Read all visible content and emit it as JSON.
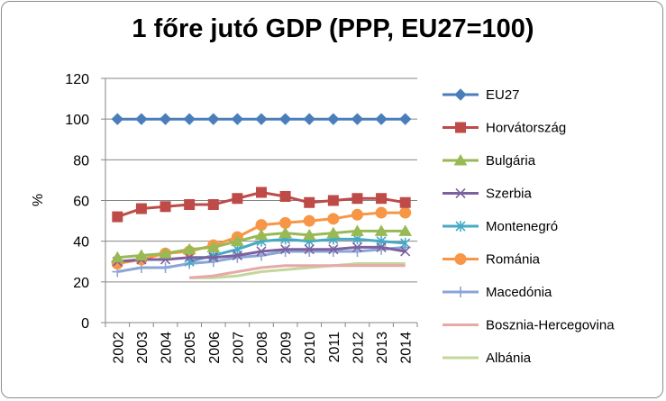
{
  "chart_data": {
    "type": "line",
    "title": "1 főre jutó GDP (PPP, EU27=100)",
    "ylabel": "%",
    "xlabel": "",
    "ylim": [
      0,
      120
    ],
    "yticks": [
      0,
      20,
      40,
      60,
      80,
      100,
      120
    ],
    "grid": true,
    "legend_position": "right",
    "x": [
      "2002",
      "2003",
      "2004",
      "2005",
      "2006",
      "2007",
      "2008",
      "2009",
      "2010",
      "2011",
      "2012",
      "2013",
      "2014"
    ],
    "series": [
      {
        "name": "EU27",
        "color": "#4a7ebb",
        "marker": "diamond",
        "values": [
          100,
          100,
          100,
          100,
          100,
          100,
          100,
          100,
          100,
          100,
          100,
          100,
          100
        ]
      },
      {
        "name": "Horvátország",
        "color": "#be4b48",
        "marker": "square",
        "values": [
          52,
          56,
          57,
          58,
          58,
          61,
          64,
          62,
          59,
          60,
          61,
          61,
          59
        ]
      },
      {
        "name": "Bulgária",
        "color": "#98b954",
        "marker": "triangle",
        "values": [
          32,
          33,
          34,
          36,
          37,
          40,
          43,
          44,
          43,
          44,
          45,
          45,
          45
        ]
      },
      {
        "name": "Szerbia",
        "color": "#7d60a0",
        "marker": "x",
        "values": [
          30,
          31,
          31,
          32,
          32,
          33,
          35,
          36,
          36,
          36,
          37,
          37,
          35
        ]
      },
      {
        "name": "Montenegró",
        "color": "#46aac5",
        "marker": "asterisk",
        "values": [
          null,
          null,
          null,
          30,
          33,
          36,
          40,
          41,
          40,
          41,
          41,
          40,
          39
        ]
      },
      {
        "name": "Románia",
        "color": "#f79646",
        "marker": "circle",
        "values": [
          29,
          31,
          34,
          35,
          38,
          42,
          48,
          49,
          50,
          51,
          53,
          54,
          54
        ]
      },
      {
        "name": "Macedónia",
        "color": "#8aa5d6",
        "marker": "plus",
        "values": [
          25,
          27,
          27,
          29,
          30,
          32,
          33,
          35,
          35,
          35,
          35,
          36,
          37
        ]
      },
      {
        "name": "Bosznia-Hercegovina",
        "color": "#e6a9a7",
        "marker": "none",
        "values": [
          null,
          null,
          null,
          22,
          23,
          25,
          27,
          28,
          28,
          28,
          28,
          28,
          28
        ]
      },
      {
        "name": "Albánia",
        "color": "#c3d69b",
        "marker": "none",
        "values": [
          null,
          null,
          null,
          22,
          22,
          23,
          25,
          26,
          27,
          28,
          29,
          29,
          29
        ]
      }
    ]
  }
}
